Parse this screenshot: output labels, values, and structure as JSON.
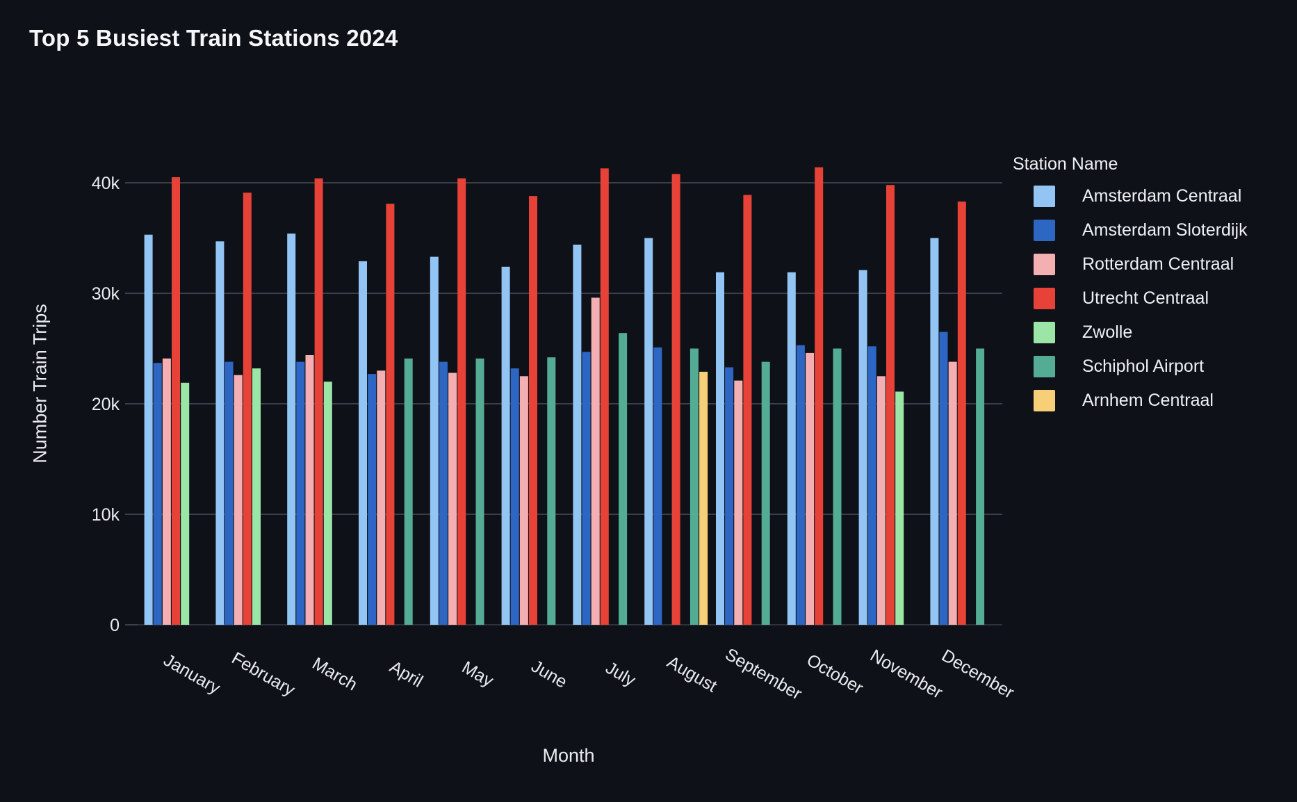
{
  "chart_data": {
    "type": "bar",
    "title": "Top 5 Busiest Train Stations 2024",
    "xlabel": "Month",
    "ylabel": "Number Train Trips",
    "legend_title": "Station Name",
    "legend_position": "right",
    "grid": true,
    "ylim": [
      0,
      43500
    ],
    "yticks": [
      {
        "value": 0,
        "label": "0"
      },
      {
        "value": 10000,
        "label": "10k"
      },
      {
        "value": 20000,
        "label": "20k"
      },
      {
        "value": 30000,
        "label": "30k"
      },
      {
        "value": 40000,
        "label": "40k"
      }
    ],
    "categories": [
      "January",
      "February",
      "March",
      "April",
      "May",
      "June",
      "July",
      "August",
      "September",
      "October",
      "November",
      "December"
    ],
    "series": [
      {
        "name": "Amsterdam Centraal",
        "color": "#93c5f4",
        "values": [
          35300,
          34700,
          35400,
          32900,
          33300,
          32400,
          34400,
          35000,
          31900,
          31900,
          32100,
          35000
        ]
      },
      {
        "name": "Amsterdam Sloterdijk",
        "color": "#2d66c3",
        "values": [
          23700,
          23800,
          23800,
          22700,
          23800,
          23200,
          24700,
          25100,
          23300,
          25300,
          25200,
          26500
        ]
      },
      {
        "name": "Rotterdam Centraal",
        "color": "#f3afb2",
        "values": [
          24100,
          22600,
          24400,
          23000,
          22800,
          22500,
          29600,
          null,
          22100,
          24600,
          22500,
          23800
        ]
      },
      {
        "name": "Utrecht Centraal",
        "color": "#e74237",
        "values": [
          40500,
          39100,
          40400,
          38100,
          40400,
          38800,
          41300,
          40800,
          38900,
          41400,
          39800,
          38300
        ]
      },
      {
        "name": "Zwolle",
        "color": "#9be6a7",
        "values": [
          21900,
          23200,
          22000,
          null,
          null,
          null,
          null,
          null,
          null,
          null,
          21100,
          null
        ]
      },
      {
        "name": "Schiphol Airport",
        "color": "#55ac94",
        "values": [
          null,
          null,
          null,
          24100,
          24100,
          24200,
          26400,
          25000,
          23800,
          25000,
          null,
          25000
        ]
      },
      {
        "name": "Arnhem Centraal",
        "color": "#f6cf76",
        "values": [
          null,
          null,
          null,
          null,
          null,
          null,
          null,
          22900,
          null,
          null,
          null,
          null
        ]
      }
    ],
    "colors": {
      "background": "#0f1118",
      "grid_line": "#3a3f48",
      "axis_line": "#2e323b",
      "tick_text": "#e9ecef",
      "title_text": "#f5f6f8"
    }
  }
}
